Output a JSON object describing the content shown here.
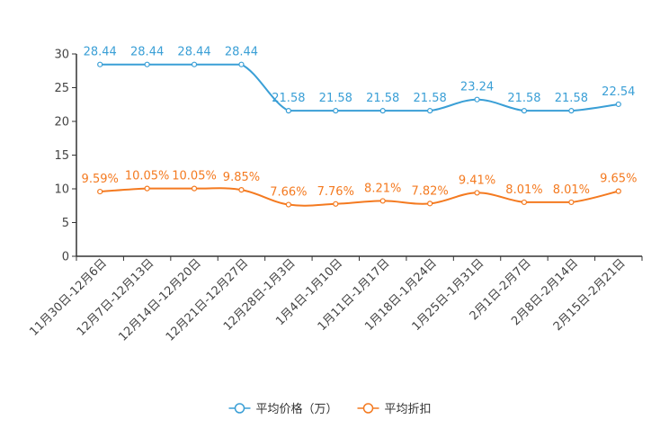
{
  "chart_data": {
    "type": "line",
    "title": "",
    "xlabel": "",
    "ylabel": "",
    "ylim": [
      0,
      30
    ],
    "yticks": [
      0,
      5,
      10,
      15,
      20,
      25,
      30
    ],
    "grid": false,
    "legend_position": "bottom-center",
    "categories": [
      "11月30日-12月6日",
      "12月7日-12月13日",
      "12月14日-12月20日",
      "12月21日-12月27日",
      "12月28日-1月3日",
      "1月4日-1月10日",
      "1月11日-1月17日",
      "1月18日-1月24日",
      "1月25日-1月31日",
      "2月1日-2月7日",
      "2月8日-2月14日",
      "2月15日-2月21日"
    ],
    "series": [
      {
        "name": "平均价格（万）",
        "color": "#3a9fd6",
        "values": [
          28.44,
          28.44,
          28.44,
          28.44,
          21.58,
          21.58,
          21.58,
          21.58,
          23.24,
          21.58,
          21.58,
          22.54
        ],
        "labels": [
          "28.44",
          "28.44",
          "28.44",
          "28.44",
          "21.58",
          "21.58",
          "21.58",
          "21.58",
          "23.24",
          "21.58",
          "21.58",
          "22.54"
        ]
      },
      {
        "name": "平均折扣",
        "color": "#f47a20",
        "values": [
          9.59,
          10.05,
          10.05,
          9.85,
          7.66,
          7.76,
          8.21,
          7.82,
          9.41,
          8.01,
          8.01,
          9.65
        ],
        "labels": [
          "9.59%",
          "10.05%",
          "10.05%",
          "9.85%",
          "7.66%",
          "7.76%",
          "8.21%",
          "7.82%",
          "9.41%",
          "8.01%",
          "8.01%",
          "9.65%"
        ]
      }
    ]
  }
}
